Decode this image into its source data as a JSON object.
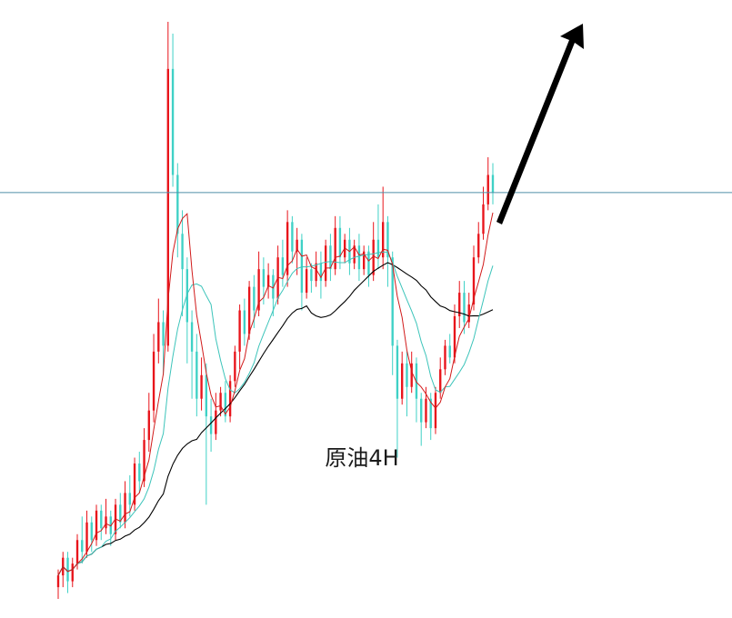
{
  "chart_data": {
    "type": "candlestick",
    "title": "原油4H",
    "colors": {
      "up": "#e8141b",
      "down": "#3fd1c6",
      "ma_fast": "#d11a1a",
      "ma_mid": "#3cc4ba",
      "ma_slow": "#000000",
      "horizontal_line": "#4f8fa6",
      "arrow": "#000000"
    },
    "horizontal_line_level": 0.71,
    "arrow": "trend-up",
    "grid": false,
    "legend": "none",
    "candles_ohlc_normalized": [
      [
        0.04,
        0.06,
        0.02,
        0.07
      ],
      [
        0.06,
        0.09,
        0.04,
        0.1
      ],
      [
        0.09,
        0.05,
        0.03,
        0.1
      ],
      [
        0.05,
        0.08,
        0.04,
        0.09
      ],
      [
        0.08,
        0.12,
        0.07,
        0.13
      ],
      [
        0.12,
        0.1,
        0.08,
        0.16
      ],
      [
        0.1,
        0.15,
        0.09,
        0.17
      ],
      [
        0.15,
        0.12,
        0.1,
        0.16
      ],
      [
        0.12,
        0.17,
        0.11,
        0.18
      ],
      [
        0.17,
        0.14,
        0.12,
        0.18
      ],
      [
        0.14,
        0.16,
        0.13,
        0.19
      ],
      [
        0.16,
        0.13,
        0.11,
        0.17
      ],
      [
        0.13,
        0.18,
        0.12,
        0.19
      ],
      [
        0.18,
        0.15,
        0.14,
        0.2
      ],
      [
        0.15,
        0.2,
        0.14,
        0.22
      ],
      [
        0.2,
        0.18,
        0.16,
        0.23
      ],
      [
        0.18,
        0.25,
        0.17,
        0.26
      ],
      [
        0.25,
        0.22,
        0.2,
        0.27
      ],
      [
        0.22,
        0.29,
        0.21,
        0.31
      ],
      [
        0.29,
        0.34,
        0.27,
        0.37
      ],
      [
        0.34,
        0.44,
        0.32,
        0.47
      ],
      [
        0.44,
        0.49,
        0.42,
        0.53
      ],
      [
        0.49,
        0.45,
        0.4,
        0.51
      ],
      [
        0.45,
        0.92,
        0.44,
        1.0
      ],
      [
        0.92,
        0.74,
        0.72,
        0.98
      ],
      [
        0.74,
        0.64,
        0.6,
        0.76
      ],
      [
        0.64,
        0.58,
        0.5,
        0.68
      ],
      [
        0.58,
        0.49,
        0.42,
        0.6
      ],
      [
        0.49,
        0.44,
        0.36,
        0.51
      ],
      [
        0.44,
        0.36,
        0.33,
        0.47
      ],
      [
        0.36,
        0.4,
        0.34,
        0.43
      ],
      [
        0.4,
        0.33,
        0.18,
        0.42
      ],
      [
        0.33,
        0.3,
        0.27,
        0.36
      ],
      [
        0.3,
        0.34,
        0.29,
        0.37
      ],
      [
        0.34,
        0.37,
        0.33,
        0.38
      ],
      [
        0.37,
        0.33,
        0.32,
        0.39
      ],
      [
        0.33,
        0.39,
        0.32,
        0.4
      ],
      [
        0.39,
        0.44,
        0.38,
        0.45
      ],
      [
        0.44,
        0.51,
        0.41,
        0.52
      ],
      [
        0.51,
        0.47,
        0.45,
        0.53
      ],
      [
        0.47,
        0.55,
        0.46,
        0.56
      ],
      [
        0.55,
        0.51,
        0.48,
        0.57
      ],
      [
        0.51,
        0.58,
        0.5,
        0.61
      ],
      [
        0.58,
        0.55,
        0.52,
        0.6
      ],
      [
        0.55,
        0.57,
        0.53,
        0.59
      ],
      [
        0.57,
        0.53,
        0.5,
        0.58
      ],
      [
        0.53,
        0.6,
        0.52,
        0.62
      ],
      [
        0.6,
        0.57,
        0.55,
        0.63
      ],
      [
        0.57,
        0.66,
        0.55,
        0.68
      ],
      [
        0.66,
        0.61,
        0.59,
        0.67
      ],
      [
        0.61,
        0.63,
        0.57,
        0.65
      ],
      [
        0.63,
        0.54,
        0.51,
        0.64
      ],
      [
        0.54,
        0.58,
        0.53,
        0.6
      ],
      [
        0.58,
        0.56,
        0.54,
        0.59
      ],
      [
        0.56,
        0.59,
        0.55,
        0.61
      ],
      [
        0.59,
        0.56,
        0.53,
        0.61
      ],
      [
        0.56,
        0.62,
        0.55,
        0.63
      ],
      [
        0.62,
        0.58,
        0.56,
        0.64
      ],
      [
        0.58,
        0.65,
        0.57,
        0.67
      ],
      [
        0.65,
        0.6,
        0.58,
        0.67
      ],
      [
        0.6,
        0.63,
        0.59,
        0.64
      ],
      [
        0.63,
        0.59,
        0.57,
        0.65
      ],
      [
        0.59,
        0.62,
        0.58,
        0.63
      ],
      [
        0.62,
        0.58,
        0.56,
        0.64
      ],
      [
        0.58,
        0.61,
        0.57,
        0.62
      ],
      [
        0.61,
        0.57,
        0.55,
        0.62
      ],
      [
        0.57,
        0.63,
        0.56,
        0.66
      ],
      [
        0.63,
        0.6,
        0.58,
        0.69
      ],
      [
        0.6,
        0.66,
        0.58,
        0.72
      ],
      [
        0.66,
        0.6,
        0.55,
        0.67
      ],
      [
        0.6,
        0.45,
        0.4,
        0.61
      ],
      [
        0.45,
        0.36,
        0.26,
        0.46
      ],
      [
        0.36,
        0.42,
        0.35,
        0.44
      ],
      [
        0.42,
        0.38,
        0.33,
        0.44
      ],
      [
        0.38,
        0.42,
        0.37,
        0.44
      ],
      [
        0.42,
        0.36,
        0.32,
        0.43
      ],
      [
        0.36,
        0.32,
        0.28,
        0.37
      ],
      [
        0.32,
        0.36,
        0.31,
        0.38
      ],
      [
        0.36,
        0.31,
        0.29,
        0.37
      ],
      [
        0.31,
        0.37,
        0.3,
        0.38
      ],
      [
        0.37,
        0.41,
        0.36,
        0.43
      ],
      [
        0.41,
        0.45,
        0.4,
        0.46
      ],
      [
        0.45,
        0.43,
        0.42,
        0.47
      ],
      [
        0.43,
        0.5,
        0.42,
        0.52
      ],
      [
        0.5,
        0.54,
        0.48,
        0.56
      ],
      [
        0.54,
        0.49,
        0.47,
        0.56
      ],
      [
        0.49,
        0.52,
        0.48,
        0.54
      ],
      [
        0.52,
        0.6,
        0.51,
        0.62
      ],
      [
        0.6,
        0.64,
        0.59,
        0.66
      ],
      [
        0.64,
        0.69,
        0.63,
        0.72
      ],
      [
        0.69,
        0.74,
        0.68,
        0.77
      ],
      [
        0.74,
        0.71,
        0.69,
        0.76
      ]
    ]
  }
}
